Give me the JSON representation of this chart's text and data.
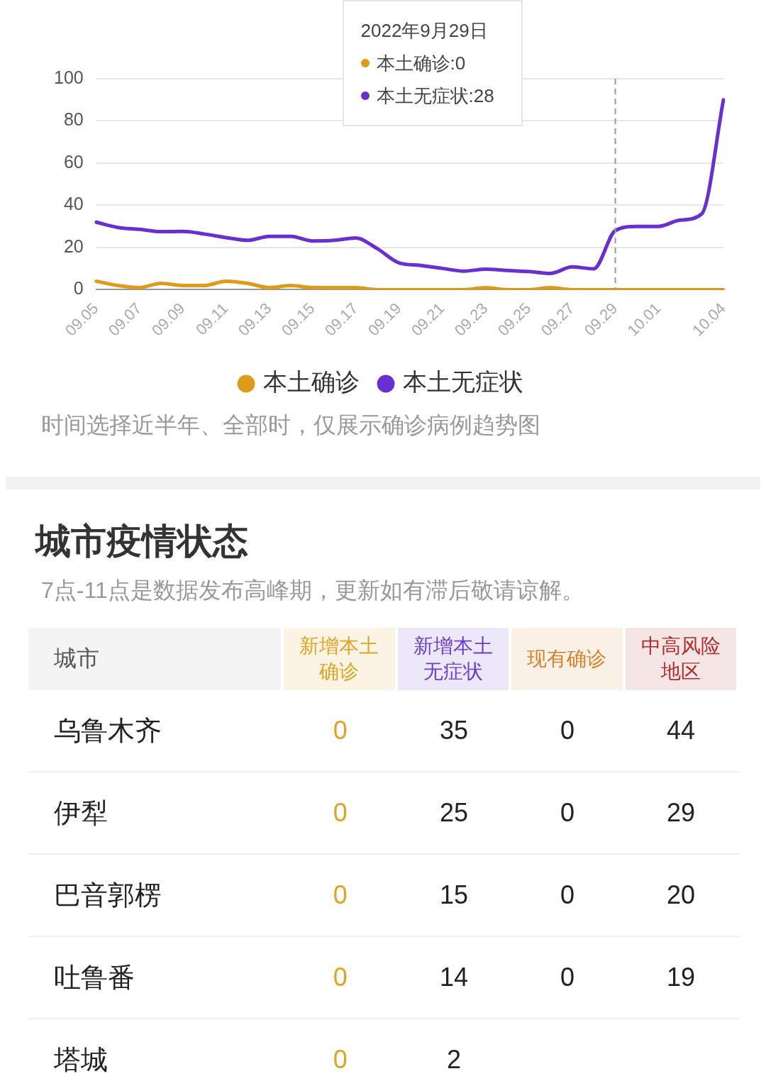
{
  "chart_data": [
    {
      "type": "line",
      "categories": [
        "09.05",
        null,
        "09.07",
        null,
        "09.09",
        null,
        "09.11",
        null,
        "09.13",
        null,
        "09.15",
        null,
        "09.17",
        null,
        "09.19",
        null,
        "09.21",
        null,
        "09.23",
        null,
        "09.25",
        null,
        "09.27",
        null,
        "09.29",
        null,
        "10.01",
        null,
        null,
        "10.04"
      ],
      "series": [
        {
          "name": "本土确诊",
          "color": "#e09a1a",
          "values": [
            4,
            2,
            1,
            3,
            2,
            2,
            4,
            3,
            1,
            2,
            1,
            1,
            1,
            0,
            0,
            0,
            0,
            0,
            1,
            0,
            0,
            1,
            0,
            0,
            0,
            0,
            0,
            0,
            0,
            0
          ]
        },
        {
          "name": "本土无症状",
          "color": "#6a2fd0",
          "values": [
            32,
            29.5,
            28.6,
            27.5,
            27.6,
            26.4,
            24.7,
            23.4,
            25.3,
            25.3,
            23.1,
            23.4,
            24.5,
            19.4,
            12.7,
            11.5,
            10.1,
            8.8,
            9.7,
            9.1,
            8.6,
            7.7,
            10.8,
            9.9,
            28,
            30,
            30,
            33,
            36,
            90
          ]
        }
      ],
      "ylim": [
        0,
        100
      ],
      "yticks": [
        0,
        20,
        40,
        60,
        80,
        100
      ],
      "grid": "y",
      "legend": "bottom",
      "marker": "none",
      "line_style": "solid",
      "ref_lines": [
        {
          "axis": "x",
          "value": "09.29",
          "color": "#999999",
          "line_style": "dashed"
        }
      ],
      "annotations": [
        "2022年9月29日",
        "本土确诊:0",
        "本土无症状:28",
        "时间选择近半年、全部时，仅展示确诊病例趋势图"
      ]
    },
    {
      "type": "heatmap",
      "title": "城市疫情状态",
      "subtitle": "7点-11点是数据发布高峰期，更新如有滞后敬请谅解。",
      "ylabel": "城市",
      "categories": [
        "新增本土确诊",
        "新增本土无症状",
        "现有确诊",
        "中高风险地区"
      ],
      "colors": [
        "#e0a526",
        "#6a3fd0",
        "#d9822b",
        "#b22a2a"
      ],
      "y_categories": [
        "乌鲁木齐",
        "伊犁",
        "巴音郭楞",
        "吐鲁番",
        "塔城"
      ],
      "cells": [
        [
          0,
          35,
          0,
          44
        ],
        [
          0,
          25,
          0,
          29
        ],
        [
          0,
          15,
          0,
          20
        ],
        [
          0,
          14,
          0,
          19
        ],
        [
          0,
          2,
          null,
          null
        ]
      ],
      "data_labels": true
    }
  ]
}
